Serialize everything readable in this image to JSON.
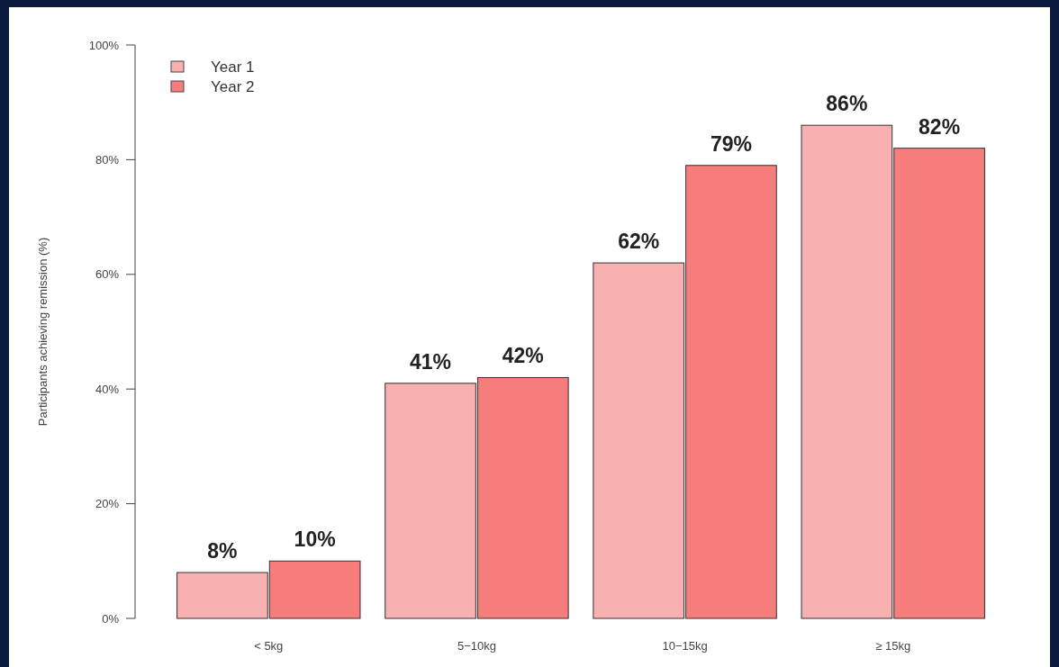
{
  "chart_data": {
    "type": "bar",
    "ylabel": "Participants achieving remission (%)",
    "categories": [
      "< 5kg",
      "5−10kg",
      "10−15kg",
      "≥ 15kg"
    ],
    "series": [
      {
        "name": "Year 1",
        "color": "#f9b0b0",
        "values": [
          8,
          41,
          62,
          86
        ],
        "value_labels": [
          "8%",
          "41%",
          "62%",
          "86%"
        ]
      },
      {
        "name": "Year 2",
        "color": "#f77d7d",
        "values": [
          10,
          42,
          79,
          82
        ],
        "value_labels": [
          "10%",
          "42%",
          "79%",
          "82%"
        ]
      }
    ],
    "ylim": [
      0,
      100
    ],
    "yticks": [
      {
        "value": 0,
        "label": "0%"
      },
      {
        "value": 20,
        "label": "20%"
      },
      {
        "value": 40,
        "label": "40%"
      },
      {
        "value": 60,
        "label": "60%"
      },
      {
        "value": 80,
        "label": "80%"
      },
      {
        "value": 100,
        "label": "100%"
      }
    ],
    "legend": "top left",
    "grid": false
  }
}
